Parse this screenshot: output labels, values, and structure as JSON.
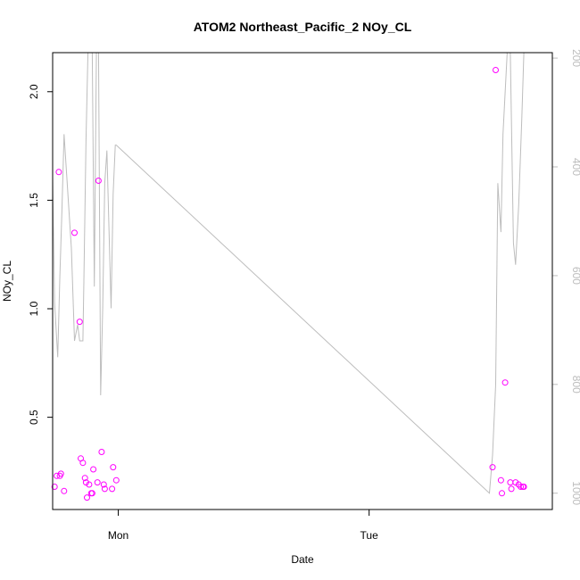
{
  "chart_data": {
    "type": "scatter",
    "title": "ATOM2 Northeast_Pacific_2 NOy_CL",
    "xlabel": "Date",
    "ylabel": "NOy_CL",
    "x_tick_labels": [
      "Mon",
      "Tue"
    ],
    "x_tick_values": [
      24,
      48
    ],
    "xlim": [
      17.72,
      65.53
    ],
    "ylim": [
      0.075,
      2.18
    ],
    "y_ticks": [
      0.5,
      1.0,
      1.5,
      2.0
    ],
    "y_tick_labels": [
      "0.5",
      "1.0",
      "1.5",
      "2.0"
    ],
    "y2_ticks": [
      200,
      400,
      600,
      800,
      1000
    ],
    "y2_tick_labels": [
      "200",
      "400",
      "600",
      "800",
      "1000"
    ],
    "y2lim": [
      1030,
      190
    ],
    "grid": false,
    "points_color": "#ff00ff",
    "line_color": "#bdbdbd",
    "series": [
      {
        "values_x": [
          17.91,
          18.11,
          18.31,
          18.41,
          18.51,
          18.81,
          19.81,
          20.31,
          20.41,
          20.61,
          20.81,
          20.91,
          21.01,
          21.21,
          21.41,
          21.51,
          21.61,
          22.01,
          22.11,
          22.41,
          22.61,
          22.71,
          23.41,
          23.51,
          23.81,
          59.81,
          60.11,
          60.61,
          60.71,
          61.01,
          61.51,
          61.61,
          62.01,
          62.31,
          62.51,
          62.71,
          62.81
        ],
        "values_y": [
          0.18,
          0.23,
          1.63,
          0.23,
          0.24,
          0.16,
          1.35,
          0.94,
          0.31,
          0.29,
          0.22,
          0.2,
          0.13,
          0.19,
          0.15,
          0.15,
          0.26,
          0.2,
          1.59,
          0.34,
          0.19,
          0.17,
          0.17,
          0.27,
          0.21,
          0.27,
          2.1,
          0.21,
          0.15,
          0.66,
          0.2,
          0.17,
          0.2,
          0.19,
          0.18,
          0.18,
          0.18
        ]
      },
      {
        "line_x": [
          17.72,
          17.91,
          18.21,
          18.41,
          18.61,
          18.81,
          19.51,
          19.81,
          20.11,
          20.31,
          20.41,
          20.61,
          20.71,
          20.91,
          21.11,
          21.31,
          21.51,
          21.71,
          21.91,
          22.11,
          22.31,
          22.51,
          22.71,
          22.91,
          23.31,
          23.51,
          23.71,
          23.81,
          59.51,
          59.81,
          60.11,
          60.31,
          60.61,
          60.81,
          61.21,
          61.51,
          61.81,
          62.01,
          62.31,
          62.61,
          62.81
        ],
        "line_y": [
          420,
          650,
          750,
          600,
          480,
          340,
          550,
          720,
          690,
          720,
          720,
          720,
          610,
          350,
          180,
          180,
          190,
          620,
          180,
          180,
          820,
          660,
          430,
          370,
          660,
          450,
          360,
          360,
          1000,
          930,
          800,
          430,
          520,
          340,
          190,
          190,
          540,
          580,
          470,
          310,
          190
        ]
      }
    ]
  }
}
